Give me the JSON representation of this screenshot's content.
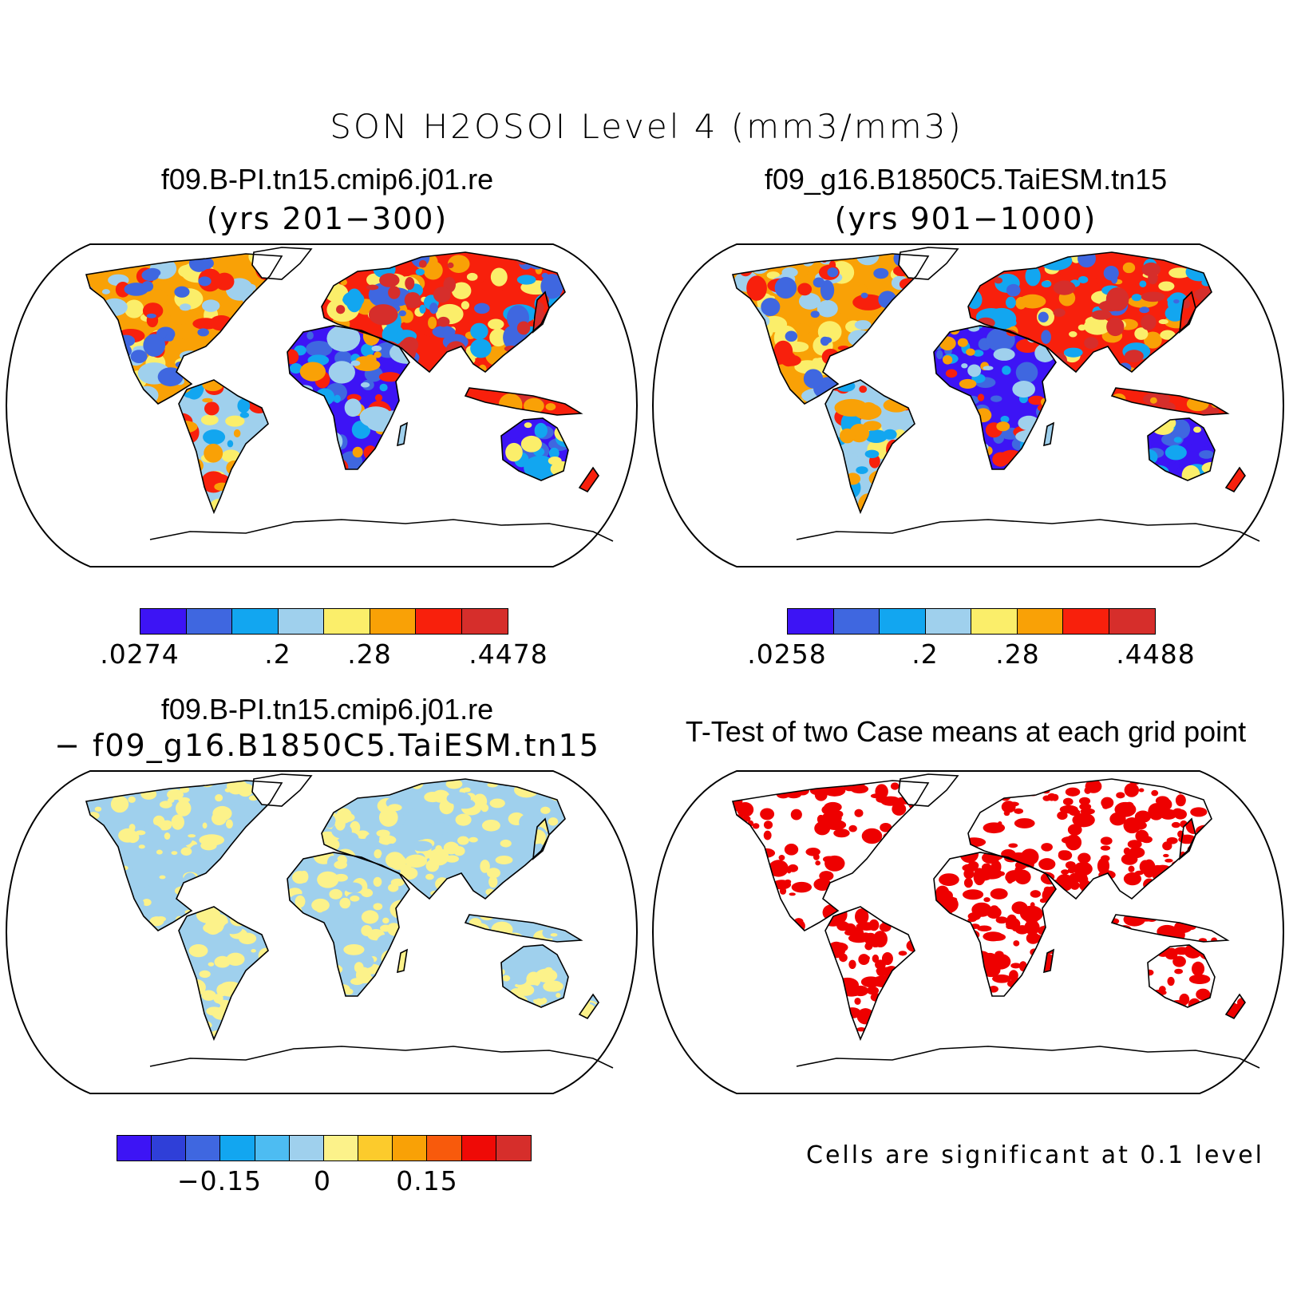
{
  "title": "SON H2OSOI Level 4 (mm3/mm3)",
  "panels": [
    {
      "id": "case1",
      "title": "f09.B-PI.tn15.cmip6.j01.re",
      "subtitle": "(yrs 201−300)",
      "colorbar": {
        "colors": [
          "#3d14f5",
          "#3f67e0",
          "#12a6f0",
          "#9fd0ed",
          "#fbee6a",
          "#f9a106",
          "#f8200c",
          "#d62e2b"
        ],
        "tick_labels": [
          ".0274",
          ".2",
          ".28",
          ".4478"
        ]
      }
    },
    {
      "id": "case2",
      "title": "f09_g16.B1850C5.TaiESM.tn15",
      "subtitle": "(yrs 901−1000)",
      "colorbar": {
        "colors": [
          "#3d14f5",
          "#3f67e0",
          "#12a6f0",
          "#9fd0ed",
          "#fbee6a",
          "#f9a106",
          "#f8200c",
          "#d62e2b"
        ],
        "tick_labels": [
          ".0258",
          ".2",
          ".28",
          ".4488"
        ]
      }
    },
    {
      "id": "diff",
      "title": "f09.B-PI.tn15.cmip6.j01.re",
      "subtitle": "− f09_g16.B1850C5.TaiESM.tn15",
      "colorbar": {
        "colors": [
          "#3d14f5",
          "#2f3fd8",
          "#3f67e0",
          "#12a6f0",
          "#4dbcf2",
          "#9fd0ed",
          "#fcf28a",
          "#fccb2c",
          "#f9a106",
          "#f85a0c",
          "#ef0a06",
          "#d62e2b"
        ],
        "tick_labels": [
          "−0.15",
          "0",
          "0.15"
        ]
      }
    },
    {
      "id": "ttest",
      "title": "T-Test of two Case means at each grid point",
      "note": "Cells are significant at 0.1 level"
    }
  ],
  "colors": {
    "ocean": "#ffffff",
    "outline": "#000000",
    "ttest_significant": "#ee0000"
  }
}
